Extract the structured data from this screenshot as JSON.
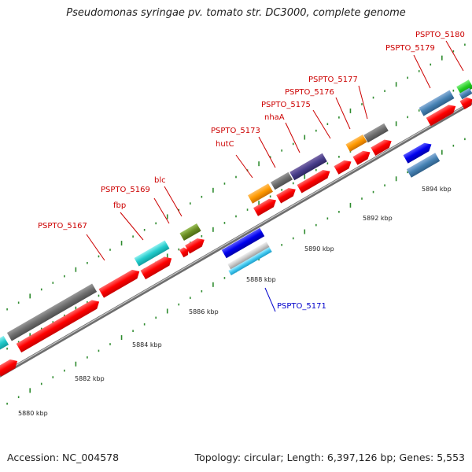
{
  "title": "Pseudomonas syringae pv. tomato str. DC3000, complete genome",
  "accession": "Accession: NC_004578",
  "summary": "Topology: circular; Length: 6,397,126 bp; Genes: 5,553",
  "colors": {
    "cds_forward": "#ff0000",
    "cds_reverse": "#ff0000",
    "backbone": "#888888",
    "tick": "#2e8b2e",
    "label_highlight": "#cc0000",
    "label_plain": "#0000cc"
  },
  "scale": {
    "ticks": [
      {
        "label": "5880 kbp"
      },
      {
        "label": "5882 kbp"
      },
      {
        "label": "5884 kbp"
      },
      {
        "label": "5886 kbp"
      },
      {
        "label": "5888 kbp"
      },
      {
        "label": "5890 kbp"
      },
      {
        "label": "5892 kbp"
      },
      {
        "label": "5894 kbp"
      }
    ]
  },
  "gene_labels": [
    {
      "text": "PSPTO_5167",
      "color": "red"
    },
    {
      "text": "fbp",
      "color": "red"
    },
    {
      "text": "PSPTO_5169",
      "color": "red"
    },
    {
      "text": "blc",
      "color": "red"
    },
    {
      "text": "PSPTO_5171",
      "color": "blue"
    },
    {
      "text": "hutC",
      "color": "red"
    },
    {
      "text": "PSPTO_5173",
      "color": "red"
    },
    {
      "text": "nhaA",
      "color": "red"
    },
    {
      "text": "PSPTO_5175",
      "color": "red"
    },
    {
      "text": "PSPTO_5176",
      "color": "red"
    },
    {
      "text": "PSPTO_5177",
      "color": "red"
    },
    {
      "text": "PSPTO_5179",
      "color": "red"
    },
    {
      "text": "PSPTO_5180",
      "color": "red"
    }
  ]
}
